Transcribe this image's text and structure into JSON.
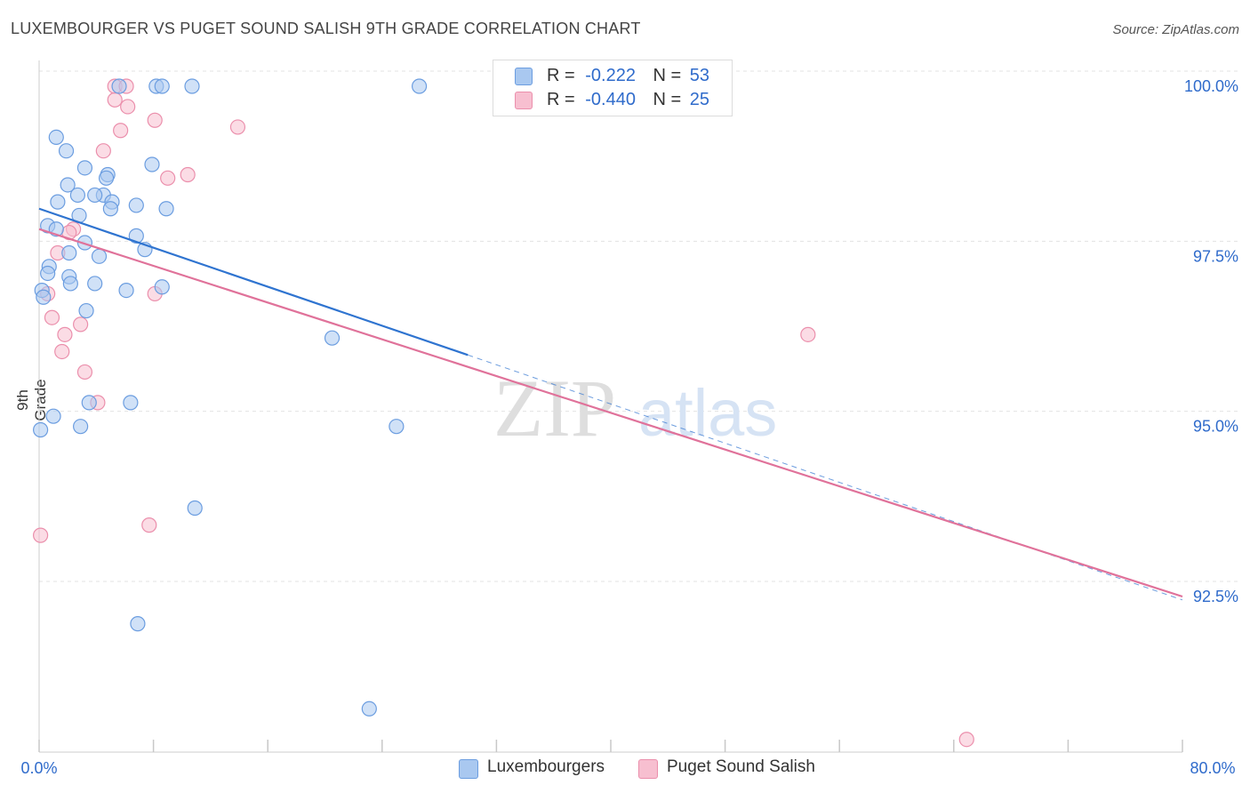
{
  "header": {
    "title": "LUXEMBOURGER VS PUGET SOUND SALISH 9TH GRADE CORRELATION CHART",
    "source": "Source: ZipAtlas.com"
  },
  "watermark": {
    "zip": "ZIP",
    "atlas": "atlas"
  },
  "legend": {
    "rows": [
      {
        "r_label": "R =",
        "r_value": "-0.222",
        "n_label": "N =",
        "n_value": "53"
      },
      {
        "r_label": "R =",
        "r_value": "-0.440",
        "n_label": "N =",
        "n_value": "25"
      }
    ]
  },
  "colors": {
    "blue_fill": "#a9c8f0",
    "blue_stroke": "#6b9de0",
    "blue_line": "#2f74d0",
    "pink_fill": "#f7bfd0",
    "pink_stroke": "#eb8fac",
    "pink_line": "#e0729a",
    "grid": "#e3e3e3",
    "tick_label": "#2f6bcb"
  },
  "chart_data": {
    "type": "scatter",
    "title": "LUXEMBOURGER VS PUGET SOUND SALISH 9TH GRADE CORRELATION CHART",
    "xlabel": "",
    "ylabel": "9th Grade",
    "xlim": [
      0,
      80
    ],
    "ylim": [
      90.0,
      100.2
    ],
    "x_tick_labels": [
      "0.0%",
      "80.0%"
    ],
    "y_ticks": [
      92.5,
      95.0,
      97.5,
      100.0
    ],
    "y_tick_labels": [
      "92.5%",
      "95.0%",
      "97.5%",
      "100.0%"
    ],
    "grid": true,
    "legend_position": "top-center",
    "series": [
      {
        "name": "Luxembourgers",
        "r": -0.222,
        "n": 53,
        "trend": {
          "x_start": 0.0,
          "y_start": 98.2,
          "x_end": 30.0,
          "y_end": 96.05,
          "dash_x_end": 80.0,
          "dash_y_end": 92.45
        },
        "points": [
          [
            5.6,
            100.0
          ],
          [
            8.2,
            100.0
          ],
          [
            8.6,
            100.0
          ],
          [
            10.7,
            100.0
          ],
          [
            26.6,
            100.0
          ],
          [
            1.2,
            99.25
          ],
          [
            1.9,
            99.05
          ],
          [
            7.9,
            98.85
          ],
          [
            3.2,
            98.8
          ],
          [
            4.8,
            98.7
          ],
          [
            4.7,
            98.65
          ],
          [
            2.0,
            98.55
          ],
          [
            2.7,
            98.4
          ],
          [
            4.5,
            98.4
          ],
          [
            3.9,
            98.4
          ],
          [
            1.3,
            98.3
          ],
          [
            5.1,
            98.3
          ],
          [
            2.8,
            98.1
          ],
          [
            6.8,
            98.25
          ],
          [
            5.0,
            98.2
          ],
          [
            8.9,
            98.2
          ],
          [
            0.6,
            97.95
          ],
          [
            1.2,
            97.9
          ],
          [
            6.8,
            97.8
          ],
          [
            3.2,
            97.7
          ],
          [
            7.4,
            97.6
          ],
          [
            2.1,
            97.55
          ],
          [
            4.2,
            97.5
          ],
          [
            0.7,
            97.35
          ],
          [
            0.6,
            97.25
          ],
          [
            2.1,
            97.2
          ],
          [
            2.2,
            97.1
          ],
          [
            3.9,
            97.1
          ],
          [
            6.1,
            97.0
          ],
          [
            8.6,
            97.05
          ],
          [
            0.2,
            97.0
          ],
          [
            0.3,
            96.9
          ],
          [
            3.3,
            96.7
          ],
          [
            20.5,
            96.3
          ],
          [
            3.5,
            95.35
          ],
          [
            6.4,
            95.35
          ],
          [
            1.0,
            95.15
          ],
          [
            0.1,
            94.95
          ],
          [
            2.9,
            95.0
          ],
          [
            25.0,
            95.0
          ],
          [
            10.9,
            93.8
          ],
          [
            6.9,
            92.1
          ],
          [
            23.1,
            90.85
          ]
        ]
      },
      {
        "name": "Puget Sound Salish",
        "r": -0.44,
        "n": 25,
        "trend": {
          "x_start": 0.0,
          "y_start": 97.9,
          "x_end": 80.0,
          "y_end": 92.5
        },
        "points": [
          [
            5.3,
            100.0
          ],
          [
            6.1,
            100.0
          ],
          [
            5.3,
            99.8
          ],
          [
            6.2,
            99.7
          ],
          [
            8.1,
            99.5
          ],
          [
            13.9,
            99.4
          ],
          [
            5.7,
            99.35
          ],
          [
            4.5,
            99.05
          ],
          [
            10.4,
            98.7
          ],
          [
            9.0,
            98.65
          ],
          [
            2.4,
            97.9
          ],
          [
            2.1,
            97.85
          ],
          [
            1.3,
            97.55
          ],
          [
            0.6,
            96.95
          ],
          [
            8.1,
            96.95
          ],
          [
            0.9,
            96.6
          ],
          [
            2.9,
            96.5
          ],
          [
            1.8,
            96.35
          ],
          [
            53.8,
            96.35
          ],
          [
            1.6,
            96.1
          ],
          [
            3.2,
            95.8
          ],
          [
            4.1,
            95.35
          ],
          [
            7.7,
            93.55
          ],
          [
            0.1,
            93.4
          ],
          [
            64.9,
            90.4
          ]
        ]
      }
    ]
  }
}
